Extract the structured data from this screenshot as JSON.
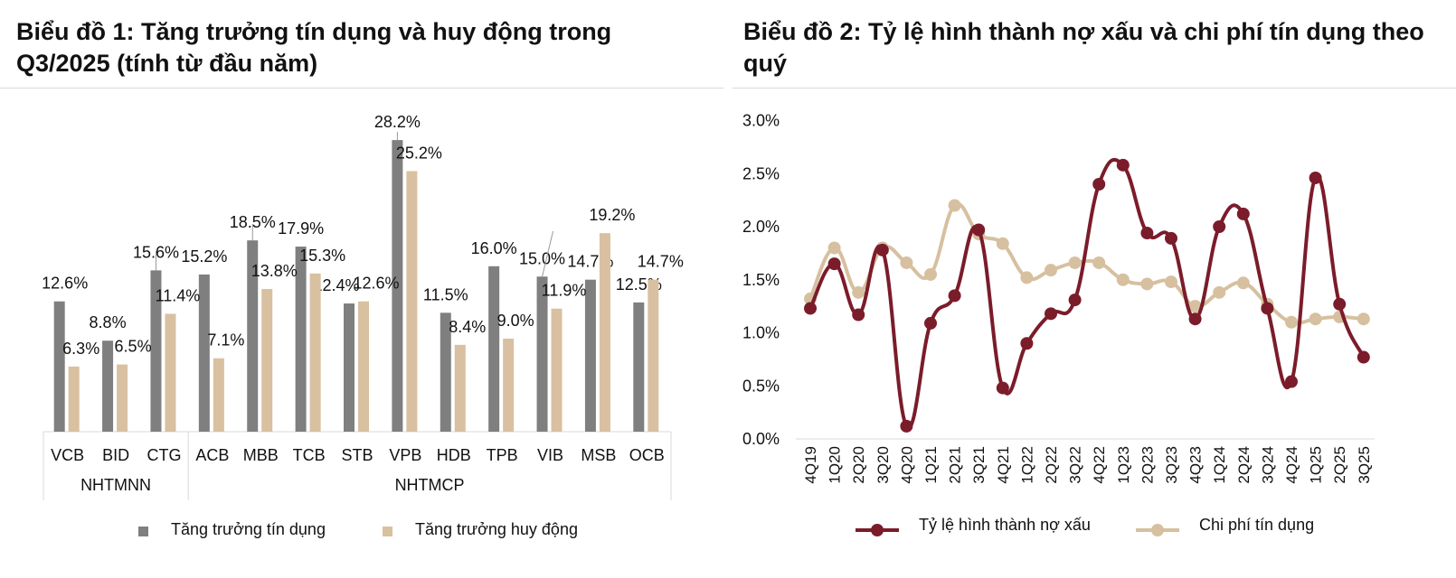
{
  "chart_data": [
    {
      "type": "bar",
      "title": "Biểu đồ 1: Tăng trưởng tín dụng và huy động trong Q3/2025 (tính từ đầu năm)",
      "categories": [
        "VCB",
        "BID",
        "CTG",
        "ACB",
        "MBB",
        "TCB",
        "STB",
        "VPB",
        "HDB",
        "TPB",
        "VIB",
        "MSB",
        "OCB"
      ],
      "groups": [
        {
          "label": "NHTMNN",
          "categories": [
            "VCB",
            "BID",
            "CTG"
          ]
        },
        {
          "label": "NHTMCP",
          "categories": [
            "ACB",
            "MBB",
            "TCB",
            "STB",
            "VPB",
            "HDB",
            "TPB",
            "VIB",
            "MSB",
            "OCB"
          ]
        }
      ],
      "series": [
        {
          "name": "Tăng trưởng tín dụng",
          "color": "#7f7f7f",
          "values": [
            12.6,
            8.8,
            15.6,
            15.2,
            18.5,
            17.9,
            12.4,
            28.2,
            11.5,
            16.0,
            15.0,
            14.7,
            12.5
          ],
          "labels": [
            "12.6%",
            "8.8%",
            "15.6%",
            "15.2%",
            "18.5%",
            "17.9%",
            "12.4%",
            "28.2%",
            "11.5%",
            "16.0%",
            "15.0%",
            "14.7%",
            "12.5%"
          ]
        },
        {
          "name": "Tăng trưởng huy động",
          "color": "#d8c0a0",
          "values": [
            6.3,
            6.5,
            11.4,
            7.1,
            13.8,
            15.3,
            12.6,
            25.2,
            8.4,
            9.0,
            11.9,
            19.2,
            14.7
          ],
          "labels": [
            "6.3%",
            "6.5%",
            "11.4%",
            "7.1%",
            "13.8%",
            "15.3%",
            "12.6%",
            "25.2%",
            "8.4%",
            "9.0%",
            "11.9%",
            "19.2%",
            "14.7%"
          ]
        }
      ],
      "ylim": [
        0,
        30
      ],
      "grid": false,
      "legend": "bottom"
    },
    {
      "type": "line",
      "title": "Biểu đồ 2: Tỷ lệ hình thành nợ xấu và chi phí tín dụng theo quý",
      "x": [
        "4Q19",
        "1Q20",
        "2Q20",
        "3Q20",
        "4Q20",
        "1Q21",
        "2Q21",
        "3Q21",
        "4Q21",
        "1Q22",
        "2Q22",
        "3Q22",
        "4Q22",
        "1Q23",
        "2Q23",
        "3Q23",
        "4Q23",
        "1Q24",
        "2Q24",
        "3Q24",
        "4Q24",
        "1Q25",
        "2Q25",
        "3Q25"
      ],
      "yticks": [
        "0.0%",
        "0.5%",
        "1.0%",
        "1.5%",
        "2.0%",
        "2.5%",
        "3.0%"
      ],
      "ylim": [
        0,
        3.0
      ],
      "series": [
        {
          "name": "Tỷ lệ hình thành nợ xấu",
          "color": "#7b1c2a",
          "values": [
            1.23,
            1.65,
            1.17,
            1.78,
            0.12,
            1.09,
            1.35,
            1.97,
            0.48,
            0.9,
            1.18,
            1.31,
            2.4,
            2.58,
            1.94,
            1.89,
            1.13,
            2.0,
            2.12,
            1.23,
            0.54,
            2.46,
            1.27,
            0.77
          ]
        },
        {
          "name": "Chi phí tín dụng",
          "color": "#d6c0a0",
          "values": [
            1.32,
            1.8,
            1.38,
            1.8,
            1.66,
            1.55,
            2.2,
            1.93,
            1.84,
            1.52,
            1.59,
            1.66,
            1.66,
            1.5,
            1.46,
            1.48,
            1.25,
            1.38,
            1.47,
            1.27,
            1.1,
            1.13,
            1.15,
            1.13
          ]
        }
      ],
      "grid": false,
      "legend": "bottom"
    }
  ]
}
